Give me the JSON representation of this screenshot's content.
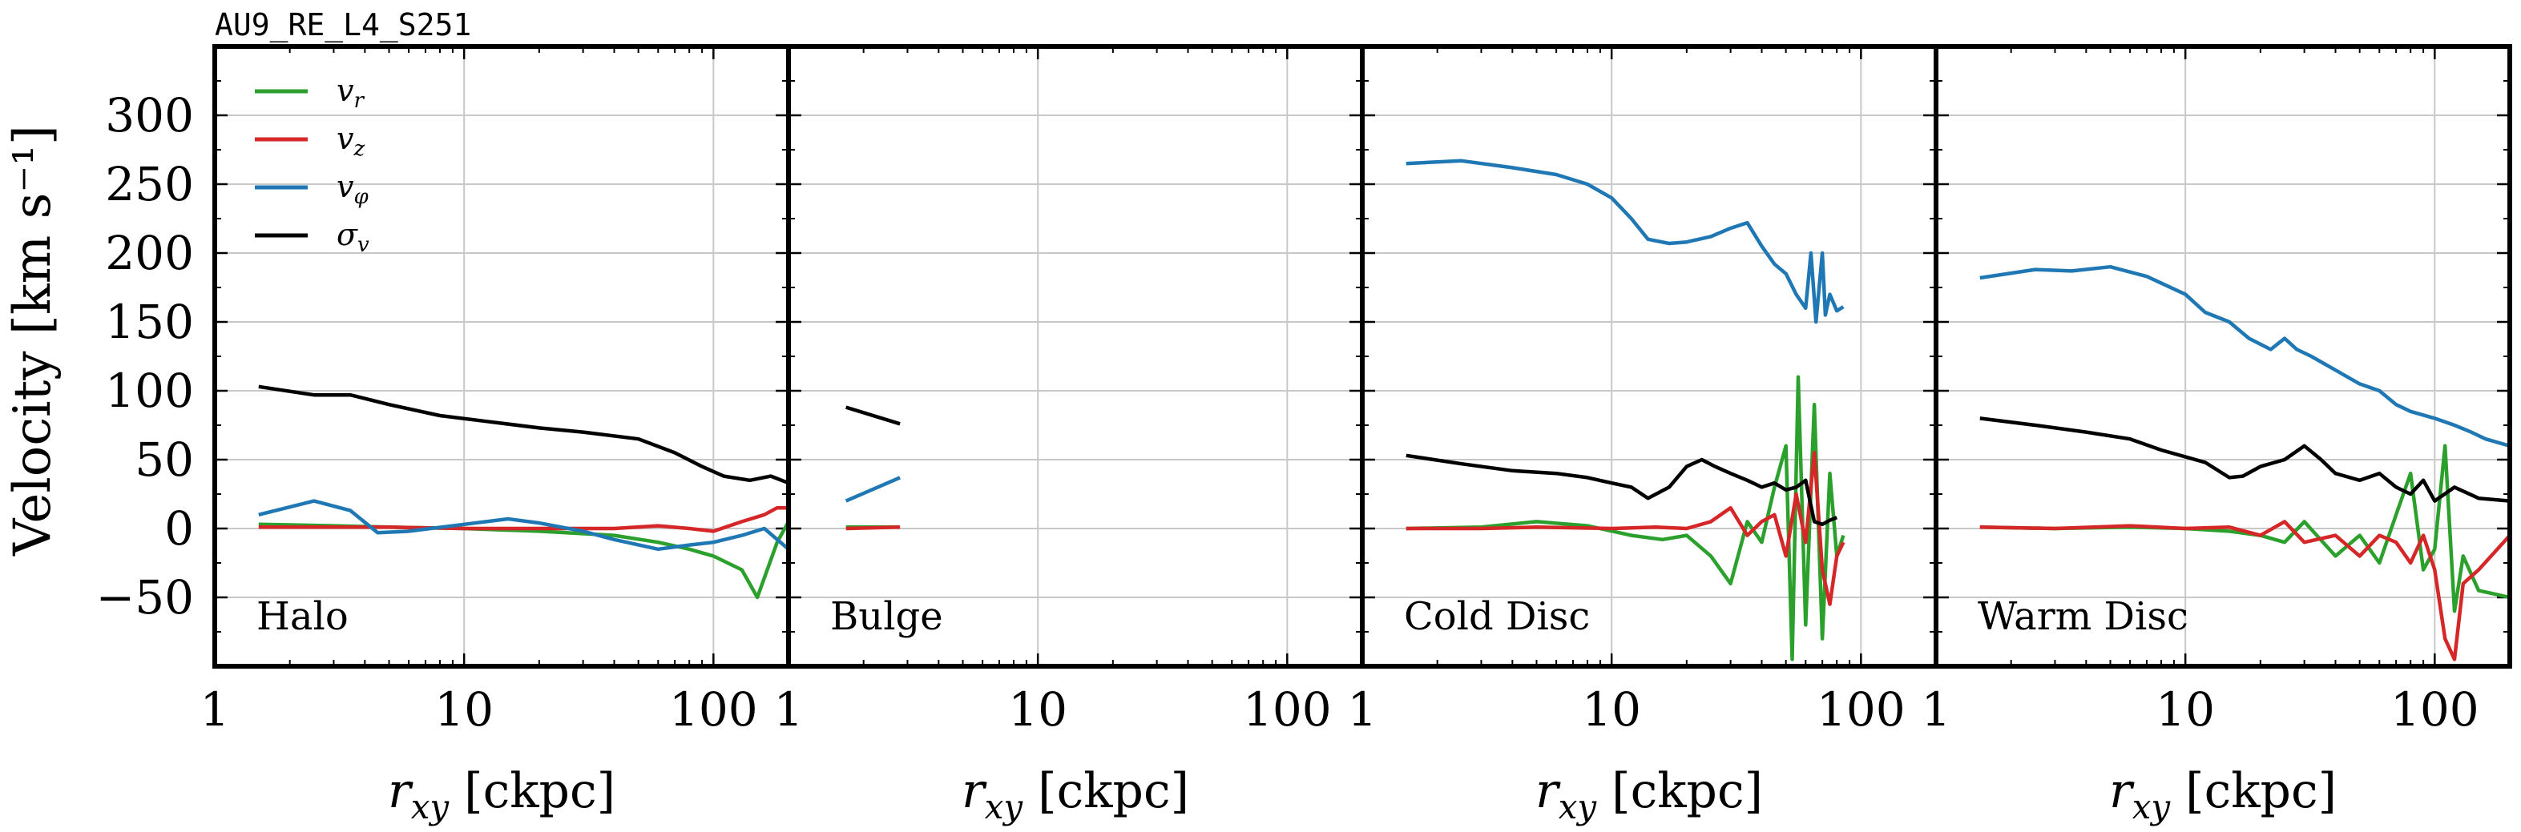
{
  "figure_title": "AU9_RE_L4_S251",
  "ylabel": "Velocity [km s⁻¹]",
  "xlabel": "r_xy [ckpc]",
  "legend": [
    {
      "key": "vr",
      "label": "v_r",
      "color": "#2ca02c"
    },
    {
      "key": "vz",
      "label": "v_z",
      "color": "#d62728"
    },
    {
      "key": "vphi",
      "label": "v_φ",
      "color": "#1f77b4"
    },
    {
      "key": "sigma",
      "label": "σ_v",
      "color": "#000000"
    }
  ],
  "chart_data": [
    {
      "type": "line",
      "panel": "Halo",
      "xscale": "log",
      "xlim": [
        1,
        200
      ],
      "ylim": [
        -100,
        350
      ],
      "x_ticks": [
        "1",
        "10",
        "100"
      ],
      "y_ticks": [
        "300",
        "250",
        "200",
        "150",
        "100",
        "50",
        "0",
        "−50"
      ],
      "grid": true,
      "series": [
        {
          "name": "v_r",
          "color": "#2ca02c",
          "points": [
            [
              1.5,
              3
            ],
            [
              3,
              2
            ],
            [
              5,
              1
            ],
            [
              10,
              0
            ],
            [
              20,
              -2
            ],
            [
              40,
              -5
            ],
            [
              60,
              -10
            ],
            [
              80,
              -15
            ],
            [
              100,
              -20
            ],
            [
              130,
              -30
            ],
            [
              150,
              -50
            ],
            [
              180,
              -10
            ],
            [
              200,
              5
            ]
          ]
        },
        {
          "name": "v_z",
          "color": "#d62728",
          "points": [
            [
              1.5,
              1
            ],
            [
              3,
              1
            ],
            [
              5,
              1
            ],
            [
              10,
              0
            ],
            [
              20,
              0
            ],
            [
              40,
              0
            ],
            [
              60,
              2
            ],
            [
              80,
              0
            ],
            [
              100,
              -2
            ],
            [
              130,
              5
            ],
            [
              160,
              10
            ],
            [
              180,
              15
            ],
            [
              200,
              15
            ]
          ]
        },
        {
          "name": "v_φ",
          "color": "#1f77b4",
          "points": [
            [
              1.5,
              10
            ],
            [
              2.5,
              20
            ],
            [
              3.5,
              13
            ],
            [
              4.5,
              -3
            ],
            [
              6,
              -2
            ],
            [
              10,
              3
            ],
            [
              15,
              7
            ],
            [
              20,
              4
            ],
            [
              30,
              -2
            ],
            [
              40,
              -8
            ],
            [
              60,
              -15
            ],
            [
              80,
              -12
            ],
            [
              100,
              -10
            ],
            [
              130,
              -5
            ],
            [
              160,
              0
            ],
            [
              200,
              -15
            ]
          ]
        },
        {
          "name": "σ_v",
          "color": "#000000",
          "points": [
            [
              1.5,
              103
            ],
            [
              2.5,
              97
            ],
            [
              3.5,
              97
            ],
            [
              5,
              90
            ],
            [
              8,
              82
            ],
            [
              12,
              78
            ],
            [
              20,
              73
            ],
            [
              30,
              70
            ],
            [
              50,
              65
            ],
            [
              70,
              55
            ],
            [
              90,
              45
            ],
            [
              110,
              38
            ],
            [
              140,
              35
            ],
            [
              170,
              38
            ],
            [
              200,
              33
            ]
          ]
        }
      ]
    },
    {
      "type": "line",
      "panel": "Bulge",
      "xscale": "log",
      "xlim": [
        1,
        200
      ],
      "ylim": [
        -100,
        350
      ],
      "x_ticks": [
        "1",
        "10",
        "100"
      ],
      "grid": true,
      "series": [
        {
          "name": "v_r",
          "color": "#2ca02c",
          "points": [
            [
              1.7,
              1
            ],
            [
              2.8,
              1
            ]
          ]
        },
        {
          "name": "v_z",
          "color": "#d62728",
          "points": [
            [
              1.7,
              0
            ],
            [
              2.8,
              1
            ]
          ]
        },
        {
          "name": "v_φ",
          "color": "#1f77b4",
          "points": [
            [
              1.7,
              20
            ],
            [
              2.8,
              37
            ]
          ]
        },
        {
          "name": "σ_v",
          "color": "#000000",
          "points": [
            [
              1.7,
              88
            ],
            [
              2.8,
              76
            ]
          ]
        }
      ]
    },
    {
      "type": "line",
      "panel": "Cold Disc",
      "xscale": "log",
      "xlim": [
        1,
        200
      ],
      "ylim": [
        -100,
        350
      ],
      "x_ticks": [
        "1",
        "10",
        "100"
      ],
      "grid": true,
      "series": [
        {
          "name": "v_r",
          "color": "#2ca02c",
          "points": [
            [
              1.5,
              0
            ],
            [
              3,
              1
            ],
            [
              5,
              5
            ],
            [
              8,
              2
            ],
            [
              12,
              -5
            ],
            [
              16,
              -8
            ],
            [
              20,
              -5
            ],
            [
              25,
              -20
            ],
            [
              30,
              -40
            ],
            [
              35,
              5
            ],
            [
              40,
              -10
            ],
            [
              45,
              30
            ],
            [
              50,
              60
            ],
            [
              53,
              -95
            ],
            [
              56,
              110
            ],
            [
              60,
              -70
            ],
            [
              65,
              90
            ],
            [
              70,
              -80
            ],
            [
              75,
              40
            ],
            [
              80,
              -20
            ],
            [
              85,
              -5
            ]
          ]
        },
        {
          "name": "v_z",
          "color": "#d62728",
          "points": [
            [
              1.5,
              0
            ],
            [
              3,
              0
            ],
            [
              5,
              1
            ],
            [
              10,
              0
            ],
            [
              15,
              1
            ],
            [
              20,
              0
            ],
            [
              25,
              5
            ],
            [
              30,
              15
            ],
            [
              35,
              -5
            ],
            [
              40,
              5
            ],
            [
              45,
              10
            ],
            [
              50,
              -20
            ],
            [
              55,
              25
            ],
            [
              60,
              -10
            ],
            [
              65,
              55
            ],
            [
              70,
              -30
            ],
            [
              75,
              -55
            ],
            [
              80,
              -20
            ],
            [
              85,
              -10
            ]
          ]
        },
        {
          "name": "v_φ",
          "color": "#1f77b4",
          "points": [
            [
              1.5,
              265
            ],
            [
              2.5,
              267
            ],
            [
              4,
              262
            ],
            [
              6,
              257
            ],
            [
              8,
              250
            ],
            [
              10,
              240
            ],
            [
              12,
              225
            ],
            [
              14,
              210
            ],
            [
              17,
              207
            ],
            [
              20,
              208
            ],
            [
              25,
              212
            ],
            [
              30,
              218
            ],
            [
              35,
              222
            ],
            [
              40,
              205
            ],
            [
              45,
              192
            ],
            [
              50,
              185
            ],
            [
              55,
              170
            ],
            [
              60,
              160
            ],
            [
              63,
              200
            ],
            [
              66,
              150
            ],
            [
              70,
              200
            ],
            [
              72,
              155
            ],
            [
              75,
              170
            ],
            [
              80,
              158
            ],
            [
              85,
              161
            ]
          ]
        },
        {
          "name": "σ_v",
          "color": "#000000",
          "points": [
            [
              1.5,
              53
            ],
            [
              2.5,
              47
            ],
            [
              4,
              42
            ],
            [
              6,
              40
            ],
            [
              8,
              37
            ],
            [
              10,
              33
            ],
            [
              12,
              30
            ],
            [
              14,
              22
            ],
            [
              17,
              30
            ],
            [
              20,
              45
            ],
            [
              23,
              50
            ],
            [
              26,
              45
            ],
            [
              30,
              40
            ],
            [
              35,
              35
            ],
            [
              40,
              30
            ],
            [
              45,
              33
            ],
            [
              50,
              28
            ],
            [
              55,
              30
            ],
            [
              60,
              35
            ],
            [
              65,
              5
            ],
            [
              70,
              3
            ],
            [
              75,
              6
            ],
            [
              80,
              8
            ]
          ]
        }
      ]
    },
    {
      "type": "line",
      "panel": "Warm Disc",
      "xscale": "log",
      "xlim": [
        1,
        200
      ],
      "ylim": [
        -100,
        350
      ],
      "x_ticks": [
        "1",
        "10",
        "100"
      ],
      "grid": true,
      "series": [
        {
          "name": "v_r",
          "color": "#2ca02c",
          "points": [
            [
              1.5,
              1
            ],
            [
              3,
              0
            ],
            [
              6,
              1
            ],
            [
              10,
              0
            ],
            [
              15,
              -2
            ],
            [
              20,
              -5
            ],
            [
              25,
              -10
            ],
            [
              30,
              5
            ],
            [
              40,
              -20
            ],
            [
              50,
              -5
            ],
            [
              60,
              -25
            ],
            [
              70,
              10
            ],
            [
              80,
              40
            ],
            [
              90,
              -30
            ],
            [
              100,
              -15
            ],
            [
              110,
              60
            ],
            [
              120,
              -60
            ],
            [
              130,
              -20
            ],
            [
              150,
              -45
            ],
            [
              200,
              -50
            ]
          ]
        },
        {
          "name": "v_z",
          "color": "#d62728",
          "points": [
            [
              1.5,
              1
            ],
            [
              3,
              0
            ],
            [
              6,
              2
            ],
            [
              10,
              0
            ],
            [
              15,
              1
            ],
            [
              20,
              -5
            ],
            [
              25,
              5
            ],
            [
              30,
              -10
            ],
            [
              40,
              -5
            ],
            [
              50,
              -20
            ],
            [
              60,
              -5
            ],
            [
              70,
              -10
            ],
            [
              80,
              -25
            ],
            [
              90,
              -5
            ],
            [
              100,
              -30
            ],
            [
              110,
              -80
            ],
            [
              120,
              -95
            ],
            [
              130,
              -40
            ],
            [
              150,
              -30
            ],
            [
              200,
              -5
            ]
          ]
        },
        {
          "name": "v_φ",
          "color": "#1f77b4",
          "points": [
            [
              1.5,
              182
            ],
            [
              2.5,
              188
            ],
            [
              3.5,
              187
            ],
            [
              5,
              190
            ],
            [
              7,
              183
            ],
            [
              10,
              170
            ],
            [
              12,
              157
            ],
            [
              15,
              150
            ],
            [
              18,
              138
            ],
            [
              22,
              130
            ],
            [
              25,
              138
            ],
            [
              28,
              130
            ],
            [
              32,
              125
            ],
            [
              40,
              115
            ],
            [
              50,
              105
            ],
            [
              60,
              100
            ],
            [
              70,
              90
            ],
            [
              80,
              85
            ],
            [
              100,
              80
            ],
            [
              120,
              75
            ],
            [
              140,
              70
            ],
            [
              160,
              65
            ],
            [
              200,
              60
            ]
          ]
        },
        {
          "name": "σ_v",
          "color": "#000000",
          "points": [
            [
              1.5,
              80
            ],
            [
              2.5,
              75
            ],
            [
              4,
              70
            ],
            [
              6,
              65
            ],
            [
              8,
              57
            ],
            [
              12,
              48
            ],
            [
              15,
              37
            ],
            [
              17,
              38
            ],
            [
              20,
              45
            ],
            [
              25,
              50
            ],
            [
              30,
              60
            ],
            [
              35,
              50
            ],
            [
              40,
              40
            ],
            [
              50,
              35
            ],
            [
              60,
              40
            ],
            [
              70,
              30
            ],
            [
              80,
              25
            ],
            [
              90,
              35
            ],
            [
              100,
              20
            ],
            [
              120,
              30
            ],
            [
              150,
              22
            ],
            [
              200,
              20
            ]
          ]
        }
      ]
    }
  ]
}
